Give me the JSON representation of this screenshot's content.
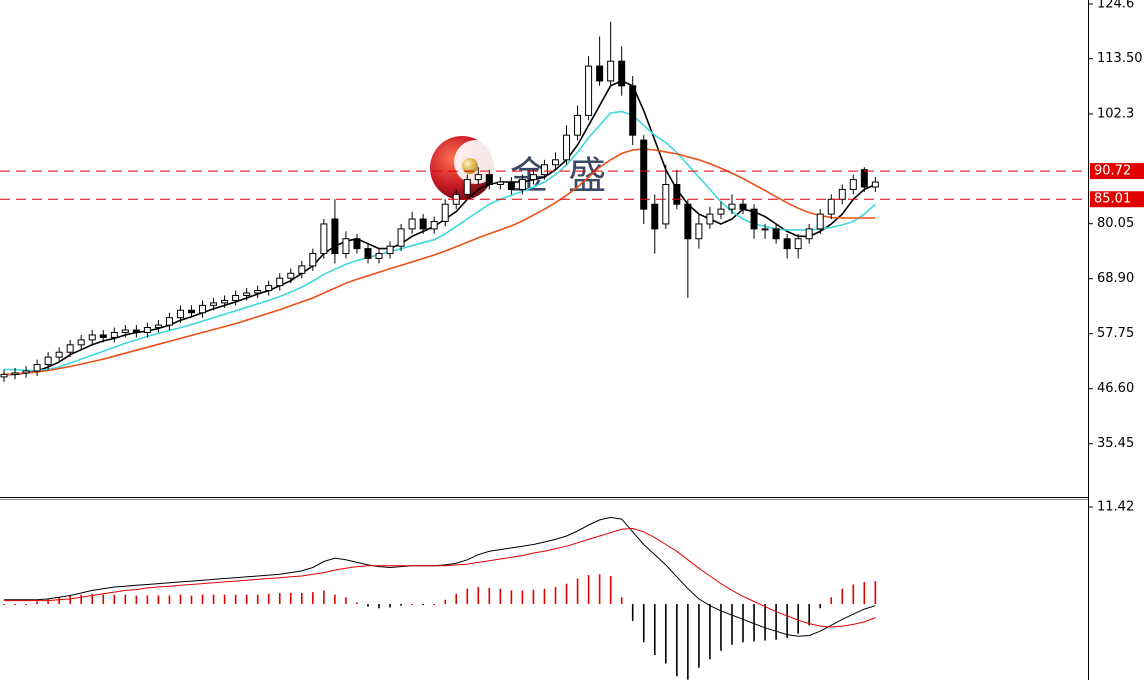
{
  "watermark": "金 盛",
  "chart_data": [
    {
      "type": "candlestick",
      "up_color": "#ffffff",
      "down_color": "#000000",
      "open": [
        49,
        49.5,
        49.8,
        50.2,
        51.5,
        53,
        54,
        55.5,
        56.5,
        57.5,
        57,
        58,
        58.5,
        58,
        59,
        59.5,
        61,
        62.5,
        62,
        63.5,
        64,
        64.5,
        65.5,
        66,
        66.5,
        67.5,
        69,
        70,
        71.5,
        74,
        81,
        74,
        77,
        75,
        73,
        74,
        75.5,
        79,
        81,
        79,
        80.5,
        84,
        86,
        89,
        90,
        88,
        88.5,
        87,
        89,
        90,
        92,
        93,
        98,
        102,
        112,
        109,
        113,
        108,
        97,
        84,
        80,
        88,
        84,
        77,
        80,
        82,
        83,
        84,
        83,
        79,
        79,
        77,
        75,
        77,
        79,
        82,
        85,
        87,
        91,
        87.5
      ],
      "high": [
        50.5,
        50.8,
        51.2,
        52.5,
        54,
        55,
        56.5,
        57.5,
        58.5,
        58.5,
        59,
        59.5,
        59.5,
        60,
        60.5,
        62,
        63.5,
        63.5,
        64.5,
        65,
        65.5,
        66.5,
        67,
        67.5,
        68.5,
        70,
        71,
        72.5,
        75,
        81,
        85,
        78.5,
        78,
        76,
        75,
        76.5,
        80,
        82.5,
        82,
        81.5,
        85,
        87,
        90,
        91.5,
        91,
        89.5,
        89.5,
        90,
        91,
        93,
        94.5,
        100,
        104,
        114,
        118,
        121,
        116,
        110,
        98,
        86,
        92,
        91,
        85,
        82,
        83.5,
        84.5,
        86,
        85,
        84,
        80,
        80,
        78,
        78,
        80,
        83,
        86,
        88,
        90,
        91.5,
        89.5
      ],
      "low": [
        48,
        48.5,
        48.8,
        49.2,
        50.5,
        52,
        53,
        54.5,
        55.5,
        56,
        56,
        57,
        57,
        57,
        58,
        58.5,
        60,
        61,
        61,
        62.5,
        63,
        63.5,
        64.5,
        65,
        65.5,
        66.5,
        68,
        69,
        70.5,
        73,
        72,
        73,
        74,
        72,
        72,
        73,
        74.5,
        78,
        78,
        78,
        79.5,
        83,
        85,
        88,
        87,
        87,
        86,
        86,
        88,
        89,
        91,
        92,
        97,
        101,
        108,
        108,
        106,
        96,
        80,
        74,
        79,
        83,
        65,
        75,
        79,
        81,
        82,
        82,
        77,
        77,
        76,
        73,
        73,
        76,
        78,
        81,
        84,
        86,
        86.5,
        86.5
      ],
      "close": [
        49.5,
        49.8,
        50.2,
        51.5,
        53,
        54,
        55.5,
        56.5,
        57.5,
        57,
        58,
        58.5,
        58,
        59,
        59.5,
        61,
        62.5,
        62,
        63.5,
        64,
        64.5,
        65.5,
        66,
        66.5,
        67.5,
        69,
        70,
        71.5,
        74,
        80,
        74,
        77,
        75,
        73,
        74,
        75.5,
        79,
        81,
        79,
        80.5,
        84,
        86,
        89,
        90,
        88,
        88.5,
        87,
        89,
        90,
        92,
        93,
        98,
        102,
        112,
        109,
        113,
        108,
        98,
        83,
        79,
        88,
        84,
        77,
        80,
        82,
        83,
        84,
        83,
        79,
        79,
        77,
        75,
        77,
        79,
        82,
        85,
        87,
        89,
        87.5,
        88.5
      ],
      "series": [
        {
          "color": "#000000",
          "values": [
            49.5,
            49.5,
            49.8,
            50.2,
            51,
            52,
            53.5,
            54.5,
            55.5,
            56.3,
            56.8,
            57.5,
            58,
            58.3,
            58.8,
            59.5,
            60.5,
            61.2,
            62,
            62.8,
            63.5,
            64.2,
            65,
            65.8,
            66.5,
            67.5,
            68.5,
            70,
            71.5,
            74,
            75.5,
            76.5,
            77,
            76,
            75,
            75,
            76,
            77.5,
            78.5,
            79.5,
            81,
            82.5,
            85,
            87,
            88,
            88.5,
            88.5,
            88.5,
            89,
            89.5,
            91,
            93,
            96,
            100,
            104,
            108,
            109,
            108,
            103,
            97,
            91,
            87,
            84,
            82,
            81,
            80,
            81,
            83,
            82.5,
            81.5,
            80,
            78.5,
            77.5,
            77.5,
            78.5,
            80,
            82,
            85,
            87,
            88
          ]
        },
        {
          "color": "#3fd8e0",
          "values": [
            50.5,
            50.5,
            50.3,
            50.3,
            50.5,
            51,
            51.8,
            52.6,
            53.4,
            54.2,
            55,
            55.8,
            56.5,
            57.2,
            57.8,
            58.4,
            59,
            59.6,
            60.3,
            61,
            61.7,
            62.4,
            63.1,
            63.8,
            64.5,
            65.3,
            66.2,
            67.2,
            68.4,
            69.8,
            70.8,
            71.8,
            72.6,
            73.2,
            73.8,
            74.4,
            75,
            75.6,
            76.2,
            76.8,
            78,
            79.5,
            81,
            82.5,
            84,
            85,
            85.8,
            86.6,
            87.5,
            88.5,
            90,
            92,
            94.5,
            97.5,
            100,
            102.5,
            102.8,
            102,
            100,
            98,
            96.5,
            94.5,
            92,
            89.5,
            87,
            84.5,
            82.5,
            81,
            80,
            79.5,
            79,
            78.8,
            78.8,
            78.8,
            79,
            79.3,
            79.8,
            80.5,
            82,
            84
          ]
        },
        {
          "color": "#e8501a",
          "values": [
            49.5,
            49.6,
            49.8,
            50,
            50.3,
            50.7,
            51.1,
            51.6,
            52.1,
            52.6,
            53.2,
            53.8,
            54.4,
            55,
            55.6,
            56.2,
            56.8,
            57.4,
            58,
            58.6,
            59.2,
            59.8,
            60.5,
            61.2,
            61.9,
            62.6,
            63.4,
            64.2,
            65,
            66,
            67,
            68,
            68.8,
            69.5,
            70.2,
            70.9,
            71.6,
            72.3,
            73,
            73.7,
            74.5,
            75.4,
            76.3,
            77.2,
            78,
            78.8,
            79.6,
            80.6,
            81.8,
            83,
            84.3,
            85.8,
            87.5,
            89.5,
            91.5,
            93,
            94.3,
            95,
            95.2,
            95,
            94.6,
            94.2,
            93.6,
            93,
            92.2,
            91.3,
            90.3,
            89.2,
            88,
            86.8,
            85.5,
            84.3,
            83.2,
            82.3,
            81.7,
            81.3,
            81.2,
            81.2,
            81.2,
            81.2
          ]
        }
      ],
      "hlines": [
        90.72,
        85.01
      ],
      "hline_color": "#e00000",
      "ylim": [
        24.65,
        125.4
      ],
      "yticks": [
        124.6,
        {
          "value": 113.5,
          "label": "113.50"
        },
        102.3,
        80.05,
        {
          "value": 68.9,
          "label": "68.90"
        },
        57.75,
        {
          "value": 46.6,
          "label": "46.60"
        },
        35.45
      ]
    },
    {
      "type": "macd",
      "up_color": "#e00000",
      "down_color": "#000000",
      "series": [
        {
          "color": "#000000",
          "values": [
            0.5,
            0.5,
            0.5,
            0.5,
            0.6,
            0.8,
            1,
            1.3,
            1.6,
            1.8,
            2,
            2.1,
            2.2,
            2.3,
            2.4,
            2.5,
            2.6,
            2.7,
            2.8,
            2.9,
            3,
            3.1,
            3.2,
            3.3,
            3.4,
            3.5,
            3.7,
            3.9,
            4.3,
            5,
            5.4,
            5.2,
            4.9,
            4.6,
            4.4,
            4.3,
            4.4,
            4.5,
            4.5,
            4.5,
            4.6,
            4.8,
            5.2,
            5.8,
            6.2,
            6.4,
            6.6,
            6.8,
            7,
            7.3,
            7.6,
            8,
            8.6,
            9.3,
            9.9,
            10.2,
            10,
            8.5,
            7,
            5.8,
            4.6,
            3.2,
            1.8,
            0.6,
            -0.2,
            -0.8,
            -1.3,
            -1.8,
            -2.3,
            -2.8,
            -3.2,
            -3.6,
            -3.8,
            -3.7,
            -3.2,
            -2.5,
            -1.8,
            -1.2,
            -0.6,
            -0.2
          ]
        },
        {
          "color": "#e00000",
          "values": [
            0.4,
            0.4,
            0.4,
            0.4,
            0.4,
            0.5,
            0.6,
            0.8,
            1,
            1.2,
            1.4,
            1.6,
            1.7,
            1.9,
            2,
            2.1,
            2.2,
            2.3,
            2.4,
            2.5,
            2.6,
            2.7,
            2.8,
            2.9,
            3,
            3.1,
            3.2,
            3.3,
            3.5,
            3.7,
            4,
            4.2,
            4.4,
            4.5,
            4.5,
            4.5,
            4.5,
            4.5,
            4.5,
            4.5,
            4.5,
            4.6,
            4.7,
            4.9,
            5.1,
            5.3,
            5.5,
            5.7,
            6,
            6.2,
            6.5,
            6.8,
            7.2,
            7.6,
            8,
            8.4,
            8.8,
            8.9,
            8.5,
            7.8,
            7,
            6.2,
            5.2,
            4.2,
            3.3,
            2.4,
            1.6,
            0.9,
            0.3,
            -0.3,
            -0.9,
            -1.4,
            -1.9,
            -2.3,
            -2.6,
            -2.7,
            -2.6,
            -2.4,
            -2.1,
            -1.6
          ]
        }
      ],
      "histogram": [
        0.1,
        0.1,
        0.1,
        0.3,
        0.6,
        0.8,
        1,
        1.1,
        1.2,
        1.1,
        1.1,
        1.1,
        1,
        1,
        1,
        1,
        1.1,
        1,
        1.1,
        1.1,
        1.1,
        1.1,
        1.1,
        1.1,
        1.2,
        1.3,
        1.3,
        1.3,
        1.4,
        1.6,
        1.1,
        0.8,
        0.2,
        -0.3,
        -0.5,
        -0.4,
        -0.2,
        0.1,
        -0.1,
        0.1,
        0.5,
        1.2,
        1.8,
        2,
        1.9,
        1.8,
        1.6,
        1.6,
        1.7,
        1.8,
        2,
        2.4,
        3,
        3.4,
        3.5,
        3.3,
        0.8,
        -2,
        -4.5,
        -6,
        -7,
        -8.5,
        -8.9,
        -7.5,
        -6.5,
        -5.5,
        -4.8,
        -4.5,
        -4.4,
        -4.3,
        -4.2,
        -4,
        -3.5,
        -2.5,
        -0.5,
        0.8,
        1.8,
        2.3,
        2.6,
        2.7
      ],
      "ylim": [
        -8.94,
        12.36
      ],
      "yticks": [
        11.42
      ]
    }
  ]
}
